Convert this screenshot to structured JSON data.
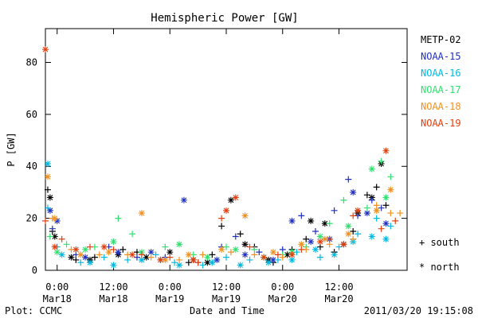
{
  "chart_data": {
    "type": "scatter",
    "title": "Hemispheric Power [GW]",
    "ylabel": "P [GW]",
    "xlabel": "Date and Time",
    "ylim": [
      0,
      93
    ],
    "xlim": [
      -5,
      149
    ],
    "yticks": [
      0,
      20,
      40,
      60,
      80
    ],
    "xticks": [
      {
        "value": 0,
        "time": "0:00",
        "date": "Mar18"
      },
      {
        "value": 24,
        "time": "12:00",
        "date": "Mar18"
      },
      {
        "value": 48,
        "time": "0:00",
        "date": "Mar19"
      },
      {
        "value": 72,
        "time": "12:00",
        "date": "Mar19"
      },
      {
        "value": 96,
        "time": "0:00",
        "date": "Mar20"
      },
      {
        "value": 120,
        "time": "12:00",
        "date": "Mar20"
      }
    ],
    "x_units": "hours since 0:00 Mar18",
    "footer_left": "Plot: CCMC",
    "footer_right": "2011/03/20 19:15:08",
    "marker_key": [
      {
        "symbol": "+",
        "label": "south"
      },
      {
        "symbol": "*",
        "label": "north"
      }
    ],
    "series": [
      {
        "name": "METP-02",
        "color": "#000000",
        "south": [
          [
            -4,
            31
          ],
          [
            -2,
            15
          ],
          [
            8,
            4
          ],
          [
            16,
            5
          ],
          [
            28,
            8
          ],
          [
            34,
            7
          ],
          [
            44,
            4
          ],
          [
            56,
            3
          ],
          [
            66,
            6
          ],
          [
            70,
            17
          ],
          [
            78,
            14
          ],
          [
            84,
            9
          ],
          [
            92,
            3
          ],
          [
            100,
            8
          ],
          [
            106,
            12
          ],
          [
            112,
            9
          ],
          [
            118,
            7
          ],
          [
            126,
            15
          ],
          [
            132,
            29
          ],
          [
            136,
            32
          ],
          [
            140,
            25
          ]
        ],
        "north": [
          [
            -3,
            28
          ],
          [
            -1,
            13
          ],
          [
            6,
            5
          ],
          [
            14,
            4
          ],
          [
            26,
            6
          ],
          [
            38,
            5
          ],
          [
            48,
            7
          ],
          [
            58,
            4
          ],
          [
            64,
            3
          ],
          [
            74,
            27
          ],
          [
            80,
            10
          ],
          [
            90,
            4
          ],
          [
            98,
            6
          ],
          [
            108,
            19
          ],
          [
            114,
            18
          ],
          [
            122,
            10
          ],
          [
            128,
            22
          ],
          [
            134,
            28
          ],
          [
            138,
            41
          ]
        ]
      },
      {
        "name": "NOAA-15",
        "color": "#2030c0",
        "south": [
          [
            -2,
            16
          ],
          [
            8,
            6
          ],
          [
            22,
            9
          ],
          [
            34,
            5
          ],
          [
            46,
            5
          ],
          [
            60,
            3
          ],
          [
            70,
            9
          ],
          [
            76,
            13
          ],
          [
            86,
            7
          ],
          [
            96,
            8
          ],
          [
            104,
            21
          ],
          [
            110,
            15
          ],
          [
            118,
            23
          ],
          [
            124,
            35
          ],
          [
            128,
            21
          ],
          [
            134,
            27
          ],
          [
            138,
            24
          ]
        ],
        "north": [
          [
            -3,
            23
          ],
          [
            0,
            19
          ],
          [
            12,
            5
          ],
          [
            26,
            7
          ],
          [
            40,
            7
          ],
          [
            54,
            27
          ],
          [
            68,
            4
          ],
          [
            80,
            6
          ],
          [
            92,
            4
          ],
          [
            100,
            19
          ],
          [
            108,
            11
          ],
          [
            116,
            12
          ],
          [
            126,
            30
          ],
          [
            132,
            22
          ],
          [
            140,
            18
          ]
        ]
      },
      {
        "name": "NOAA-16",
        "color": "#00b8e0",
        "south": [
          [
            -4,
            24
          ],
          [
            0,
            9
          ],
          [
            10,
            3
          ],
          [
            20,
            5
          ],
          [
            30,
            4
          ],
          [
            42,
            6
          ],
          [
            50,
            3
          ],
          [
            62,
            2
          ],
          [
            72,
            5
          ],
          [
            82,
            4
          ],
          [
            94,
            4
          ],
          [
            102,
            7
          ],
          [
            112,
            5
          ],
          [
            120,
            9
          ],
          [
            128,
            14
          ],
          [
            136,
            20
          ],
          [
            142,
            17
          ]
        ],
        "north": [
          [
            -4,
            41
          ],
          [
            2,
            6
          ],
          [
            14,
            3
          ],
          [
            24,
            2
          ],
          [
            36,
            4
          ],
          [
            52,
            2
          ],
          [
            66,
            3
          ],
          [
            78,
            2
          ],
          [
            90,
            3
          ],
          [
            100,
            4
          ],
          [
            110,
            8
          ],
          [
            118,
            6
          ],
          [
            126,
            11
          ],
          [
            134,
            13
          ],
          [
            140,
            12
          ]
        ]
      },
      {
        "name": "NOAA-17",
        "color": "#30e070",
        "south": [
          [
            -3,
            13
          ],
          [
            4,
            10
          ],
          [
            16,
            9
          ],
          [
            26,
            20
          ],
          [
            32,
            14
          ],
          [
            46,
            9
          ],
          [
            58,
            6
          ],
          [
            72,
            9
          ],
          [
            84,
            8
          ],
          [
            96,
            6
          ],
          [
            106,
            9
          ],
          [
            116,
            18
          ],
          [
            122,
            27
          ],
          [
            132,
            24
          ],
          [
            138,
            42
          ],
          [
            142,
            36
          ]
        ],
        "north": [
          [
            0,
            7
          ],
          [
            12,
            8
          ],
          [
            24,
            11
          ],
          [
            36,
            7
          ],
          [
            52,
            10
          ],
          [
            64,
            5
          ],
          [
            76,
            8
          ],
          [
            88,
            5
          ],
          [
            100,
            7
          ],
          [
            112,
            13
          ],
          [
            124,
            17
          ],
          [
            134,
            39
          ],
          [
            140,
            28
          ]
        ]
      },
      {
        "name": "NOAA-18",
        "color": "#f09020",
        "south": [
          [
            -2,
            20
          ],
          [
            6,
            8
          ],
          [
            18,
            6
          ],
          [
            30,
            6
          ],
          [
            40,
            5
          ],
          [
            52,
            4
          ],
          [
            62,
            6
          ],
          [
            74,
            7
          ],
          [
            84,
            6
          ],
          [
            96,
            5
          ],
          [
            106,
            8
          ],
          [
            116,
            10
          ],
          [
            126,
            12
          ],
          [
            136,
            25
          ],
          [
            142,
            22
          ],
          [
            146,
            22
          ]
        ],
        "north": [
          [
            -4,
            36
          ],
          [
            -1,
            20
          ],
          [
            10,
            6
          ],
          [
            22,
            7
          ],
          [
            36,
            22
          ],
          [
            46,
            4
          ],
          [
            56,
            6
          ],
          [
            70,
            8
          ],
          [
            80,
            21
          ],
          [
            92,
            7
          ],
          [
            104,
            10
          ],
          [
            114,
            12
          ],
          [
            124,
            14
          ],
          [
            136,
            23
          ],
          [
            142,
            31
          ]
        ]
      },
      {
        "name": "NOAA-19",
        "color": "#e04010",
        "south": [
          [
            -5,
            19
          ],
          [
            2,
            12
          ],
          [
            14,
            9
          ],
          [
            24,
            8
          ],
          [
            36,
            6
          ],
          [
            48,
            5
          ],
          [
            60,
            3
          ],
          [
            70,
            20
          ],
          [
            82,
            9
          ],
          [
            94,
            6
          ],
          [
            104,
            8
          ],
          [
            116,
            12
          ],
          [
            126,
            21
          ],
          [
            138,
            16
          ],
          [
            144,
            19
          ]
        ],
        "north": [
          [
            -5,
            85
          ],
          [
            -1,
            9
          ],
          [
            8,
            8
          ],
          [
            20,
            9
          ],
          [
            32,
            6
          ],
          [
            44,
            4
          ],
          [
            58,
            4
          ],
          [
            72,
            23
          ],
          [
            76,
            28
          ],
          [
            88,
            5
          ],
          [
            100,
            6
          ],
          [
            112,
            11
          ],
          [
            122,
            10
          ],
          [
            128,
            23
          ],
          [
            140,
            46
          ]
        ]
      }
    ]
  }
}
